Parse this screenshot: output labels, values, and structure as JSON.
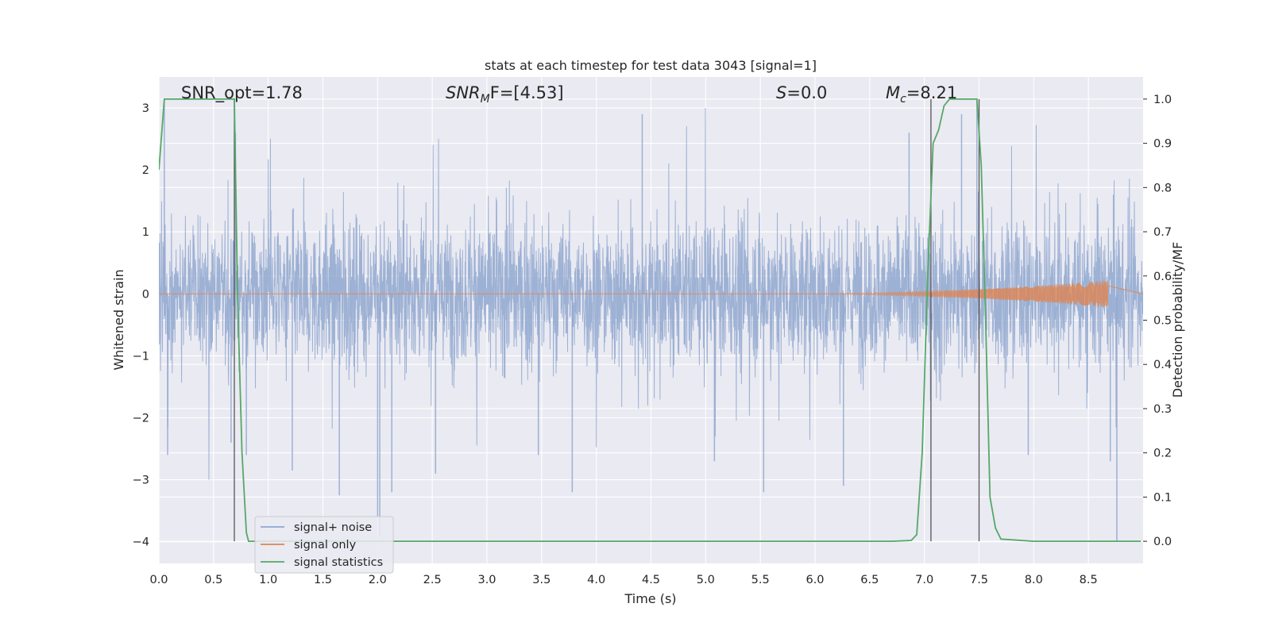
{
  "chart_data": {
    "type": "line",
    "title": "stats at each timestep for test data 3043 [signal=1]",
    "xlabel": "Time (s)",
    "ylabel": "Whitened strain",
    "ylabel_right": "Detection probability/MF",
    "xlim": [
      0.0,
      9.0
    ],
    "ylim": [
      -4.35,
      3.5
    ],
    "ylim_right": [
      -0.05,
      1.05
    ],
    "x_ticks": [
      0.0,
      0.5,
      1.0,
      1.5,
      2.0,
      2.5,
      3.0,
      3.5,
      4.0,
      4.5,
      5.0,
      5.5,
      6.0,
      6.5,
      7.0,
      7.5,
      8.0,
      8.5
    ],
    "x_tick_labels": [
      "0.0",
      "0.5",
      "1.0",
      "1.5",
      "2.0",
      "2.5",
      "3.0",
      "3.5",
      "4.0",
      "4.5",
      "5.0",
      "5.5",
      "6.0",
      "6.5",
      "7.0",
      "7.5",
      "8.0",
      "8.5"
    ],
    "y_ticks": [
      -4,
      -3,
      -2,
      -1,
      0,
      1,
      2,
      3
    ],
    "y_tick_labels": [
      "−4",
      "−3",
      "−2",
      "−1",
      "0",
      "1",
      "2",
      "3"
    ],
    "y_ticks_right": [
      0.0,
      0.1,
      0.2,
      0.3,
      0.4,
      0.5,
      0.6,
      0.7,
      0.8,
      0.9,
      1.0
    ],
    "y_tick_labels_right": [
      "0.0",
      "0.1",
      "0.2",
      "0.3",
      "0.4",
      "0.5",
      "0.6",
      "0.7",
      "0.8",
      "0.9",
      "1.0"
    ],
    "grid": true,
    "legend_position": "lower-left",
    "annotations": {
      "snr_opt": "SNR_opt=1.78",
      "snr_mf_sym": "SNR",
      "snr_mf_sub": "M",
      "snr_mf_rest": "F=[4.53]",
      "s_sym": "S",
      "s_rest": "=0.0",
      "mc_sym": "M",
      "mc_sub": "c",
      "mc_rest": "=8.21"
    },
    "vertical_markers": [
      0.69,
      7.06,
      7.5
    ],
    "series": [
      {
        "name": "signal+ noise",
        "color": "#8fa7cf",
        "axis": "left",
        "description_points": "dense noise trace, amplitude envelope roughly ±1.3 with spikes to about ±3",
        "envelope": 1.3,
        "spikes": [
          {
            "x": 0.05,
            "y": 3.1
          },
          {
            "x": 0.08,
            "y": -2.6
          },
          {
            "x": 0.66,
            "y": -2.4
          },
          {
            "x": 0.7,
            "y": 2.6
          },
          {
            "x": 0.8,
            "y": -2.6
          },
          {
            "x": 1.22,
            "y": -2.85
          },
          {
            "x": 1.65,
            "y": -3.25
          },
          {
            "x": 2.0,
            "y": -3.6
          },
          {
            "x": 2.02,
            "y": -3.9
          },
          {
            "x": 2.13,
            "y": -3.2
          },
          {
            "x": 2.53,
            "y": -2.9
          },
          {
            "x": 3.47,
            "y": -2.6
          },
          {
            "x": 3.78,
            "y": -3.2
          },
          {
            "x": 4.42,
            "y": 2.9
          },
          {
            "x": 5.08,
            "y": -2.7
          },
          {
            "x": 5.53,
            "y": -3.2
          },
          {
            "x": 6.26,
            "y": -3.1
          },
          {
            "x": 6.86,
            "y": 2.6
          },
          {
            "x": 7.34,
            "y": 2.9
          },
          {
            "x": 7.48,
            "y": 3.1
          },
          {
            "x": 7.95,
            "y": -2.6
          },
          {
            "x": 8.7,
            "y": -2.7
          },
          {
            "x": 8.76,
            "y": -4.0
          }
        ]
      },
      {
        "name": "signal only",
        "color": "#dd8452",
        "axis": "left",
        "chirp_start": 5.6,
        "chirp_end": 8.68,
        "max_amplitude": 0.22
      },
      {
        "name": "signal statistics",
        "color": "#55a868",
        "axis": "right",
        "x": [
          0.0,
          0.05,
          0.1,
          0.2,
          0.3,
          0.4,
          0.5,
          0.6,
          0.69,
          0.72,
          0.76,
          0.8,
          0.82,
          1.0,
          2.0,
          3.0,
          4.0,
          5.0,
          6.0,
          6.7,
          6.88,
          6.93,
          6.98,
          7.03,
          7.08,
          7.13,
          7.18,
          7.23,
          7.3,
          7.4,
          7.48,
          7.52,
          7.56,
          7.6,
          7.65,
          7.7,
          7.82,
          8.0,
          8.5,
          8.98
        ],
        "y": [
          0.84,
          1.0,
          1.0,
          1.0,
          1.0,
          1.0,
          1.0,
          1.0,
          1.0,
          0.55,
          0.2,
          0.02,
          0.0,
          0.0,
          0.0,
          0.0,
          0.0,
          0.0,
          0.0,
          0.0,
          0.002,
          0.015,
          0.2,
          0.6,
          0.9,
          0.93,
          0.985,
          1.0,
          1.0,
          1.0,
          1.0,
          0.85,
          0.5,
          0.1,
          0.03,
          0.005,
          0.003,
          0.0,
          0.0,
          0.0
        ]
      }
    ]
  }
}
